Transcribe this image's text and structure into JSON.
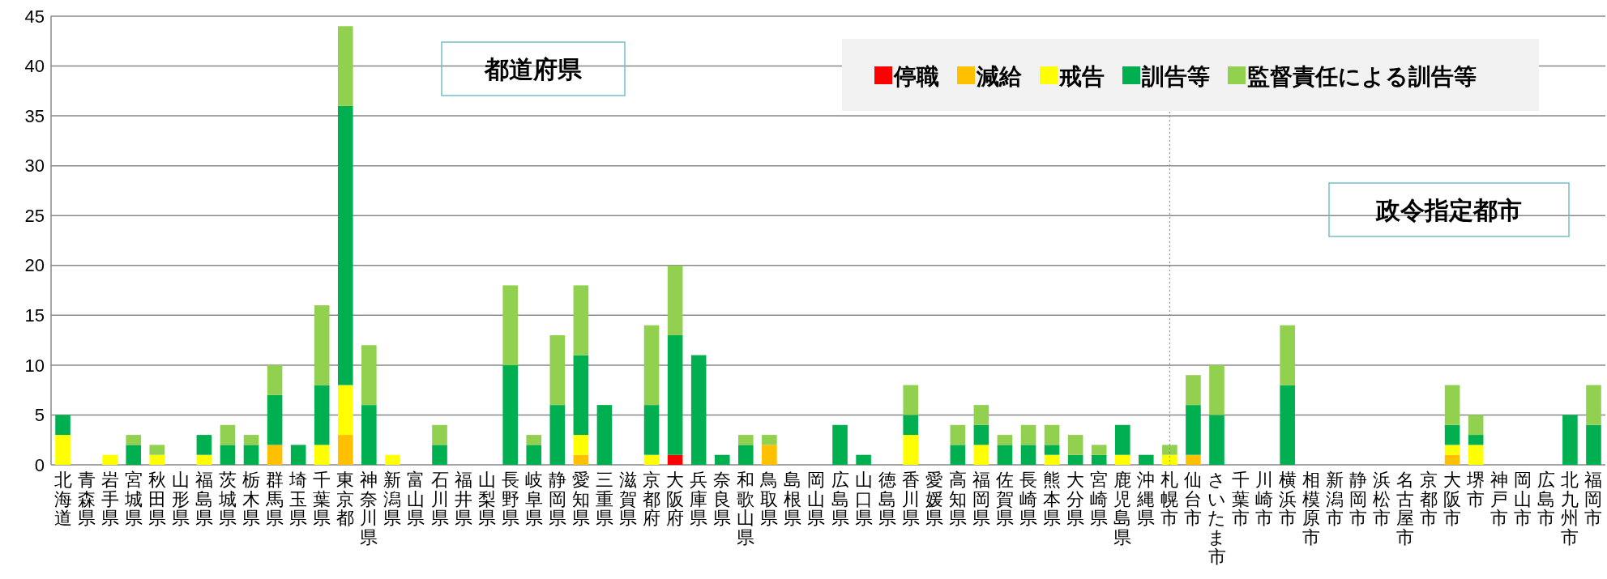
{
  "chart_data": {
    "type": "bar",
    "stacked": true,
    "categories": [
      "北海道",
      "青森県",
      "岩手県",
      "宮城県",
      "秋田県",
      "山形県",
      "福島県",
      "茨城県",
      "栃木県",
      "群馬県",
      "埼玉県",
      "千葉県",
      "東京都",
      "神奈川県",
      "新潟県",
      "富山県",
      "石川県",
      "福井県",
      "山梨県",
      "長野県",
      "岐阜県",
      "静岡県",
      "愛知県",
      "三重県",
      "滋賀県",
      "京都府",
      "大阪府",
      "兵庫県",
      "奈良県",
      "和歌山県",
      "鳥取県",
      "島根県",
      "岡山県",
      "広島県",
      "山口県",
      "徳島県",
      "香川県",
      "愛媛県",
      "高知県",
      "福岡県",
      "佐賀県",
      "長崎県",
      "熊本県",
      "大分県",
      "宮崎県",
      "鹿児島県",
      "沖縄県",
      "札幌市",
      "仙台市",
      "さいたま市",
      "千葉市",
      "川崎市",
      "横浜市",
      "相模原市",
      "新潟市",
      "静岡市",
      "浜松市",
      "名古屋市",
      "京都市",
      "大阪市",
      "堺市",
      "神戸市",
      "岡山市",
      "広島市",
      "北九州市",
      "福岡市"
    ],
    "series": [
      {
        "name": "停職",
        "color": "#ff0000",
        "values": [
          0,
          0,
          0,
          0,
          0,
          0,
          0,
          0,
          0,
          0,
          0,
          0,
          0,
          0,
          0,
          0,
          0,
          0,
          0,
          0,
          0,
          0,
          0,
          0,
          0,
          0,
          1,
          0,
          0,
          0,
          0,
          0,
          0,
          0,
          0,
          0,
          0,
          0,
          0,
          0,
          0,
          0,
          0,
          0,
          0,
          0,
          0,
          0,
          0,
          0,
          0,
          0,
          0,
          0,
          0,
          0,
          0,
          0,
          0,
          0,
          0,
          0,
          0,
          0,
          0,
          0
        ]
      },
      {
        "name": "減給",
        "color": "#ffc000",
        "values": [
          0,
          0,
          0,
          0,
          0,
          0,
          0,
          0,
          0,
          2,
          0,
          0,
          3,
          0,
          0,
          0,
          0,
          0,
          0,
          0,
          0,
          0,
          1,
          0,
          0,
          0,
          0,
          0,
          0,
          0,
          2,
          0,
          0,
          0,
          0,
          0,
          0,
          0,
          0,
          0,
          0,
          0,
          0,
          0,
          0,
          0,
          0,
          0,
          1,
          0,
          0,
          0,
          0,
          0,
          0,
          0,
          0,
          0,
          0,
          1,
          0,
          0,
          0,
          0,
          0,
          0
        ]
      },
      {
        "name": "戒告",
        "color": "#ffff00",
        "values": [
          3,
          0,
          1,
          0,
          1,
          0,
          1,
          0,
          0,
          0,
          0,
          2,
          5,
          0,
          1,
          0,
          0,
          0,
          0,
          0,
          0,
          0,
          2,
          0,
          0,
          1,
          0,
          0,
          0,
          0,
          0,
          0,
          0,
          0,
          0,
          0,
          3,
          0,
          0,
          2,
          0,
          0,
          1,
          0,
          0,
          1,
          0,
          1,
          0,
          0,
          0,
          0,
          0,
          0,
          0,
          0,
          0,
          0,
          0,
          1,
          2,
          0,
          0,
          0,
          0,
          0
        ]
      },
      {
        "name": "訓告等",
        "color": "#00b050",
        "values": [
          2,
          0,
          0,
          2,
          0,
          0,
          2,
          2,
          2,
          5,
          2,
          6,
          28,
          6,
          0,
          0,
          2,
          0,
          0,
          10,
          2,
          6,
          8,
          6,
          0,
          5,
          12,
          11,
          1,
          2,
          0,
          0,
          0,
          4,
          1,
          0,
          2,
          0,
          2,
          2,
          2,
          2,
          1,
          1,
          1,
          3,
          1,
          0,
          5,
          5,
          0,
          0,
          8,
          0,
          0,
          0,
          0,
          0,
          0,
          2,
          1,
          0,
          0,
          0,
          5,
          4
        ]
      },
      {
        "name": "監督責任による訓告等",
        "color": "#92d050",
        "values": [
          0,
          0,
          0,
          1,
          1,
          0,
          0,
          2,
          1,
          3,
          0,
          8,
          8,
          6,
          0,
          0,
          2,
          0,
          0,
          8,
          1,
          7,
          7,
          0,
          0,
          8,
          7,
          0,
          0,
          1,
          1,
          0,
          0,
          0,
          0,
          0,
          3,
          0,
          2,
          2,
          1,
          2,
          2,
          2,
          1,
          0,
          0,
          1,
          3,
          5,
          0,
          0,
          6,
          0,
          0,
          0,
          0,
          0,
          0,
          4,
          2,
          0,
          0,
          0,
          0,
          4
        ]
      }
    ],
    "ylim": [
      0,
      45
    ],
    "yticks": [
      0,
      5,
      10,
      15,
      20,
      25,
      30,
      35,
      40,
      45
    ],
    "grid": "y",
    "legend": "top right",
    "annotations": [
      "都道府県",
      "政令指定都市"
    ],
    "ref_lines": [
      {
        "axis": "x",
        "value": "札幌市",
        "line_style": "dotted",
        "color": "#808080"
      }
    ]
  }
}
